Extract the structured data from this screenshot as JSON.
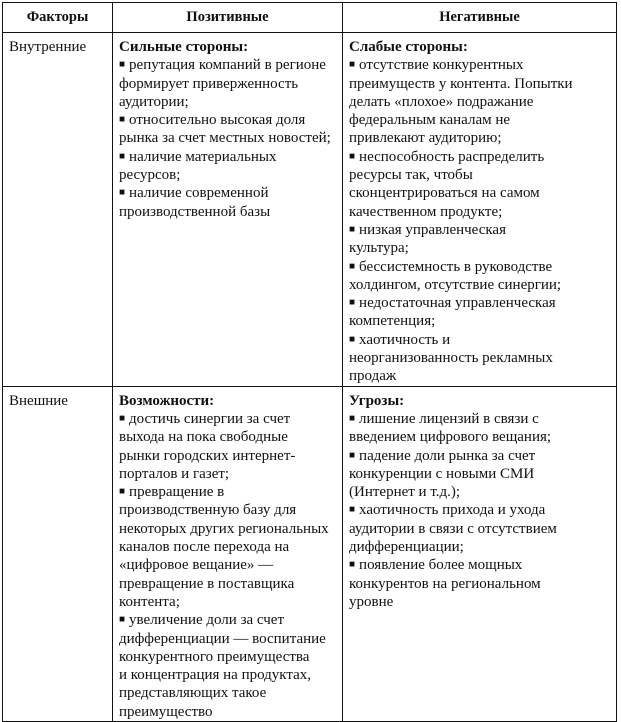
{
  "header": {
    "factors": "Факторы",
    "positive": "Позитивные",
    "negative": "Негативные"
  },
  "rows": [
    {
      "factor": "Внутренние",
      "positive": {
        "title": "Сильные стороны:",
        "items": [
          "репутация компаний в регионе\nформирует приверженность\nаудитории;",
          "относительно высокая доля\nрынка за счет местных новостей;",
          "наличие материальных\nресурсов;",
          "наличие современной\nпроизводственной базы"
        ]
      },
      "negative": {
        "title": "Слабые стороны:",
        "items": [
          "отсутствие конкурентных\nпреимуществ у контента. Попытки\nделать «плохое» подражание\nфедеральным каналам не\nпривлекают аудиторию;",
          "неспособность распределить\nресурсы так, чтобы\nсконцентрироваться на самом\nкачественном продукте;",
          "низкая управленческая\nкультура;",
          "бессистемность в руководстве\nхолдингом, отсутствие синергии;",
          "недостаточная управленческая\nкомпетенция;",
          "хаотичность и\nнеорганизованность рекламных\nпродаж"
        ]
      }
    },
    {
      "factor": "Внешние",
      "positive": {
        "title": "Возможности:",
        "items": [
          "достичь синергии за счет\nвыхода на пока свободные\nрынки городских интернет-\nпорталов и газет;",
          "превращение в\nпроизводственную базу для\nнекоторых других региональных\nканалов после перехода на\n«цифровое вещание» —\nпревращение в поставщика\nконтента;",
          "увеличение доли за счет\nдифференциации — воспитание\nконкурентного преимущества\nи концентрация на продуктах,\nпредставляющих такое\nпреимущество"
        ]
      },
      "negative": {
        "title": "Угрозы:",
        "items": [
          "лишение лицензий в связи с\nвведением цифрового вещания;",
          "падение доли рынка за счет\nконкуренции с новыми СМИ\n(Интернет и т.д.);",
          "хаотичность прихода и ухода\nаудитории в связи с отсутствием\nдифференциации;",
          "появление более мощных\nконкурентов на региональном\nуровне"
        ]
      }
    }
  ]
}
